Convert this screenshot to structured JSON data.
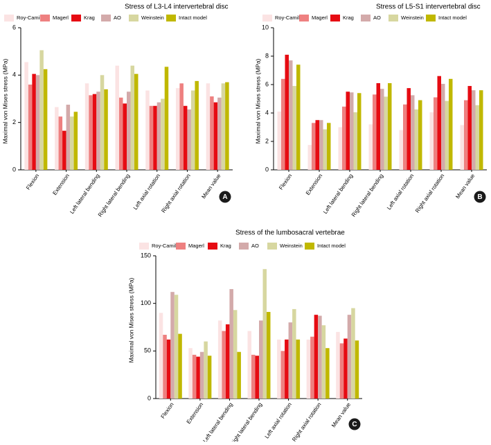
{
  "legend_entries": [
    "Roy-Camille",
    "Magerl",
    "Krag",
    "AO",
    "Weinstein",
    "Intact model"
  ],
  "colors": {
    "Roy-Camille": "#fbe3e3",
    "Magerl": "#ee8080",
    "Krag": "#e60b12",
    "AO": "#d3aaaa",
    "Weinstein": "#d7d7a0",
    "Intact model": "#c0b800"
  },
  "chart_data": [
    {
      "type": "bar",
      "title": "Stress of L3-L4 intervertebral disc",
      "ylabel": "Maximal von Mises stress (MPa)",
      "ylim": [
        0,
        6
      ],
      "yticks": [
        0,
        2,
        4,
        6
      ],
      "panel_label": "A",
      "categories": [
        "Flexion",
        "Extension",
        "Left lateral bending",
        "Right lateral bending",
        "Left axial rotation",
        "Right axial rotation",
        "Mean value"
      ],
      "series": [
        {
          "name": "Roy-Camille",
          "values": [
            4.55,
            2.65,
            3.65,
            4.4,
            3.35,
            3.45,
            3.65
          ]
        },
        {
          "name": "Magerl",
          "values": [
            3.6,
            2.25,
            3.15,
            3.05,
            2.7,
            3.65,
            3.1
          ]
        },
        {
          "name": "Krag",
          "values": [
            4.05,
            1.65,
            3.2,
            2.8,
            2.7,
            2.7,
            2.85
          ]
        },
        {
          "name": "AO",
          "values": [
            4.0,
            2.75,
            3.3,
            3.3,
            2.85,
            2.55,
            3.05
          ]
        },
        {
          "name": "Weinstein",
          "values": [
            5.05,
            2.25,
            4.0,
            4.4,
            3.0,
            3.35,
            3.65
          ]
        },
        {
          "name": "Intact model",
          "values": [
            4.25,
            2.45,
            3.4,
            4.05,
            4.35,
            3.75,
            3.7
          ]
        }
      ]
    },
    {
      "type": "bar",
      "title": "Stress of L5-S1 intervertebral disc",
      "ylabel": "Maximal von Mises stress (MPa)",
      "ylim": [
        0,
        10
      ],
      "yticks": [
        0,
        2,
        4,
        6,
        8,
        10
      ],
      "panel_label": "B",
      "categories": [
        "Flexion",
        "Extension",
        "Left lateral bending",
        "Right lateral bending",
        "Left axial rotation",
        "Right axial rotation",
        "Mean value"
      ],
      "series": [
        {
          "name": "Roy-Camille",
          "values": [
            4.1,
            1.75,
            3.0,
            3.2,
            2.8,
            4.05,
            3.15
          ]
        },
        {
          "name": "Magerl",
          "values": [
            6.4,
            3.3,
            4.45,
            5.3,
            4.6,
            5.1,
            4.9
          ]
        },
        {
          "name": "Krag",
          "values": [
            8.1,
            3.5,
            5.5,
            6.1,
            5.75,
            6.6,
            5.9
          ]
        },
        {
          "name": "AO",
          "values": [
            7.7,
            3.5,
            5.45,
            5.7,
            5.25,
            6.05,
            5.6
          ]
        },
        {
          "name": "Weinstein",
          "values": [
            5.9,
            2.85,
            4.05,
            5.15,
            4.25,
            4.85,
            4.55
          ]
        },
        {
          "name": "Intact model",
          "values": [
            7.4,
            3.3,
            5.4,
            6.1,
            4.9,
            6.4,
            5.6
          ]
        }
      ]
    },
    {
      "type": "bar",
      "title": "Stress of the lumbosacral vertebrae",
      "ylabel": "Maximal von Mises stress (MPa)",
      "ylim": [
        0,
        150
      ],
      "yticks": [
        0,
        50,
        100,
        150
      ],
      "panel_label": "C",
      "categories": [
        "Flexion",
        "Extension",
        "Left lateral bending",
        "Right lateral bending",
        "Left axial rotation",
        "Right axial rotation",
        "Mean value"
      ],
      "series": [
        {
          "name": "Roy-Camille",
          "values": [
            90,
            53,
            82,
            71,
            62,
            62,
            70
          ]
        },
        {
          "name": "Magerl",
          "values": [
            67,
            46,
            71,
            46,
            50,
            65,
            58
          ]
        },
        {
          "name": "Krag",
          "values": [
            62,
            44,
            78,
            45,
            62,
            88,
            63
          ]
        },
        {
          "name": "AO",
          "values": [
            112,
            49,
            115,
            82,
            80,
            87,
            88
          ]
        },
        {
          "name": "Weinstein",
          "values": [
            109,
            60,
            93,
            136,
            94,
            77,
            95
          ]
        },
        {
          "name": "Intact model",
          "values": [
            68,
            45,
            49,
            91,
            62,
            53,
            61
          ]
        }
      ]
    }
  ]
}
